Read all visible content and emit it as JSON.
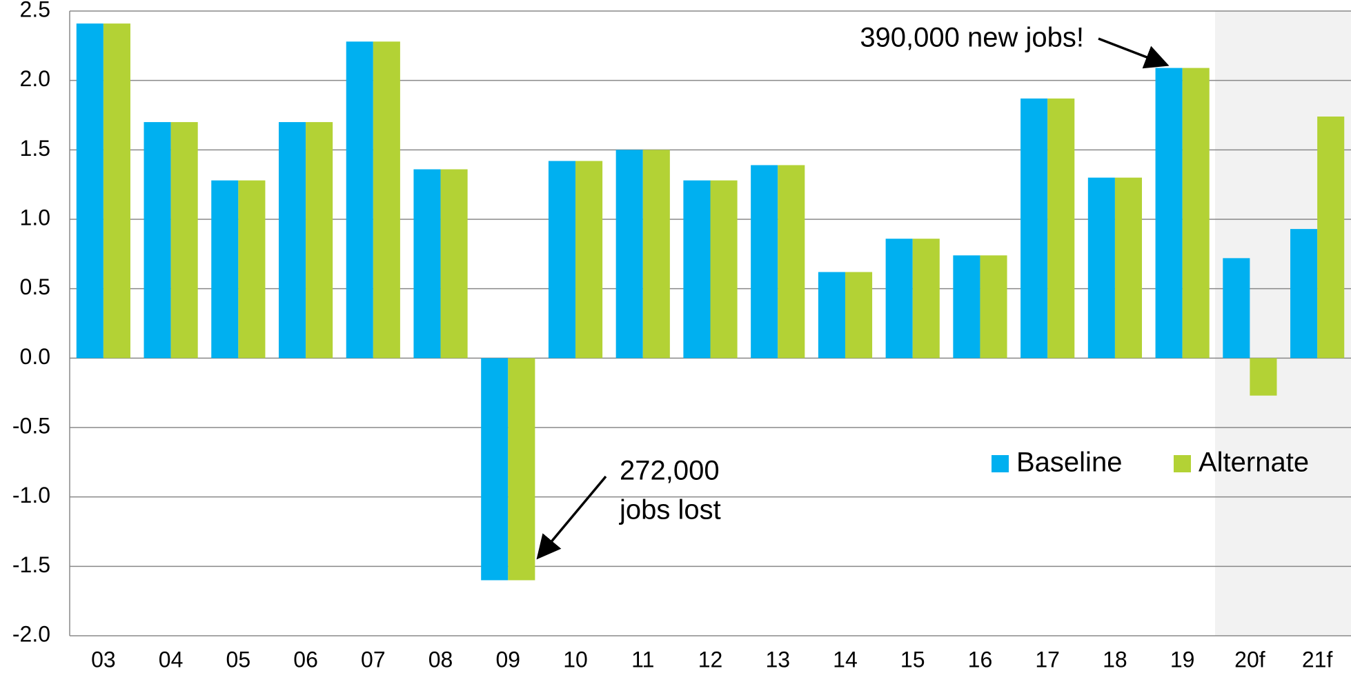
{
  "chart_data": {
    "type": "bar",
    "categories": [
      "03",
      "04",
      "05",
      "06",
      "07",
      "08",
      "09",
      "10",
      "11",
      "12",
      "13",
      "14",
      "15",
      "16",
      "17",
      "18",
      "19",
      "20f",
      "21f"
    ],
    "series": [
      {
        "name": "Baseline",
        "color": "#00b0f0",
        "values": [
          2.41,
          1.7,
          1.28,
          1.7,
          2.28,
          1.36,
          -1.6,
          1.42,
          1.5,
          1.28,
          1.39,
          0.62,
          0.86,
          0.74,
          1.87,
          1.3,
          2.09,
          0.72,
          0.93
        ]
      },
      {
        "name": "Alternate",
        "color": "#b3d235",
        "values": [
          2.41,
          1.7,
          1.28,
          1.7,
          2.28,
          1.36,
          -1.6,
          1.42,
          1.5,
          1.28,
          1.39,
          0.62,
          0.86,
          0.74,
          1.87,
          1.3,
          2.09,
          -0.27,
          1.74
        ]
      }
    ],
    "ylim": [
      -2.0,
      2.5
    ],
    "yticks": [
      {
        "value": -2.0,
        "label": "-2.0"
      },
      -1.5,
      {
        "value": -1.0,
        "label": "-1.0"
      },
      -0.5,
      {
        "value": 0,
        "label": "0.0"
      },
      0.5,
      {
        "value": 1.0,
        "label": "1.0"
      },
      1.5,
      {
        "value": 2.0,
        "label": "2.0"
      },
      2.5
    ],
    "grid": true,
    "legend": "right",
    "annotations": [
      {
        "text": "390,000 new jobs!"
      },
      {
        "lines": [
          "272,000",
          "jobs lost"
        ]
      }
    ]
  }
}
